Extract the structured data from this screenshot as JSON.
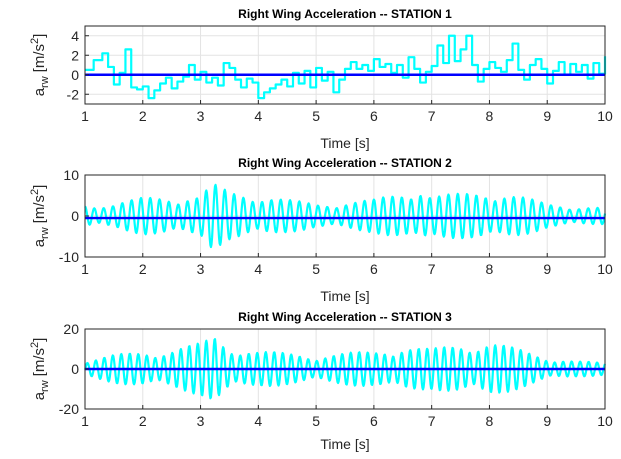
{
  "chart_data": [
    {
      "type": "line",
      "title": "Right Wing Acceleration -- STATION 1",
      "xlabel": "Time [s]",
      "ylabel": {
        "base": "a",
        "sub": "rw",
        "unit_open": "[m/s",
        "sup": "2",
        "unit_close": "]"
      },
      "xlim": [
        1,
        10
      ],
      "ylim": [
        -3,
        5
      ],
      "xticks": [
        1,
        2,
        3,
        4,
        5,
        6,
        7,
        8,
        9,
        10
      ],
      "yticks": [
        -2,
        0,
        2,
        4
      ],
      "grid": true,
      "series": [
        {
          "color": "#00ffff",
          "x": [
            1.0,
            1.15,
            1.3,
            1.4,
            1.5,
            1.6,
            1.7,
            1.8,
            1.9,
            2.0,
            2.1,
            2.2,
            2.3,
            2.4,
            2.5,
            2.6,
            2.7,
            2.8,
            2.9,
            3.0,
            3.1,
            3.2,
            3.3,
            3.4,
            3.5,
            3.6,
            3.7,
            3.8,
            3.9,
            4.0,
            4.1,
            4.2,
            4.3,
            4.4,
            4.5,
            4.6,
            4.7,
            4.8,
            4.9,
            5.0,
            5.1,
            5.2,
            5.3,
            5.4,
            5.5,
            5.6,
            5.7,
            5.8,
            5.9,
            6.0,
            6.1,
            6.2,
            6.3,
            6.4,
            6.5,
            6.6,
            6.7,
            6.8,
            6.9,
            7.0,
            7.1,
            7.2,
            7.3,
            7.4,
            7.5,
            7.6,
            7.7,
            7.8,
            7.9,
            8.0,
            8.1,
            8.2,
            8.3,
            8.4,
            8.5,
            8.6,
            8.7,
            8.8,
            8.9,
            9.0,
            9.1,
            9.2,
            9.3,
            9.4,
            9.5,
            9.6,
            9.7,
            9.8,
            9.9,
            10.0
          ],
          "y": [
            0.5,
            1.5,
            2.2,
            0.8,
            -1.0,
            0.2,
            2.6,
            -1.3,
            -1.5,
            -1.2,
            -2.4,
            -1.6,
            -0.9,
            -0.3,
            -1.4,
            -0.7,
            -0.2,
            1.0,
            -0.5,
            0.3,
            -0.8,
            -0.3,
            -1.1,
            1.2,
            0.7,
            -0.5,
            -1.3,
            -0.4,
            -0.8,
            -2.4,
            -1.8,
            -1.4,
            -1.0,
            -0.5,
            -1.2,
            0.2,
            -0.9,
            0.4,
            -1.3,
            0.7,
            -0.6,
            0.3,
            -1.8,
            -0.5,
            0.6,
            1.3,
            0.6,
            1.0,
            0.4,
            1.6,
            0.8,
            1.1,
            0.2,
            1.0,
            -0.3,
            1.8,
            0.6,
            -0.8,
            0.3,
            0.9,
            3.0,
            1.2,
            4.0,
            1.4,
            2.6,
            4.0,
            1.0,
            -0.7,
            0.6,
            1.3,
            0.7,
            0.3,
            1.5,
            3.2,
            0.5,
            -0.5,
            1.0,
            1.6,
            0.6,
            -0.9,
            0.4,
            1.3,
            0.0,
            1.1,
            0.3,
            1.0,
            -0.4,
            1.2,
            0.1,
            1.9
          ]
        },
        {
          "color": "#0000ff",
          "x": [
            1,
            10
          ],
          "y": [
            0.0,
            0.0
          ]
        }
      ]
    },
    {
      "type": "line",
      "title": "Right Wing Acceleration -- STATION 2",
      "xlabel": "Time [s]",
      "ylabel": {
        "base": "a",
        "sub": "rw",
        "unit_open": "[m/s",
        "sup": "2",
        "unit_close": "]"
      },
      "xlim": [
        1,
        10
      ],
      "ylim": [
        -10,
        10
      ],
      "xticks": [
        1,
        2,
        3,
        4,
        5,
        6,
        7,
        8,
        9,
        10
      ],
      "yticks": [
        -10,
        0,
        10
      ],
      "grid": true,
      "series": [
        {
          "color": "#00ffff",
          "envelope": {
            "t": [
              1,
              1.5,
              2,
              2.5,
              3,
              3.2,
              3.5,
              4,
              4.5,
              5,
              5.5,
              6,
              6.5,
              6.8,
              7,
              7.5,
              8,
              8.5,
              9,
              9.5,
              10
            ],
            "a": [
              3,
              3,
              4.5,
              5,
              5,
              8,
              6,
              5.5,
              4,
              3,
              3.5,
              4,
              6,
              7.5,
              5,
              5.5,
              6.5,
              5,
              3,
              2.5,
              2
            ]
          },
          "cycles_per_second": 6.2,
          "phase": 0.3
        },
        {
          "color": "#0000ff",
          "x": [
            1,
            10
          ],
          "y": [
            -0.5,
            -0.5
          ]
        }
      ]
    },
    {
      "type": "line",
      "title": "Right Wing Acceleration  -- STATION 3",
      "xlabel": "Time [s]",
      "ylabel": {
        "base": "a",
        "sub": "rw",
        "unit_open": "[m/s",
        "sup": "2",
        "unit_close": "]"
      },
      "xlim": [
        1,
        10
      ],
      "ylim": [
        -20,
        20
      ],
      "xticks": [
        1,
        2,
        3,
        4,
        5,
        6,
        7,
        8,
        9,
        10
      ],
      "yticks": [
        -20,
        0,
        20
      ],
      "grid": true,
      "series": [
        {
          "color": "#00ffff",
          "envelope": {
            "t": [
              1,
              1.5,
              2,
              2.5,
              3,
              3.25,
              3.5,
              4,
              4.5,
              5,
              5.5,
              6,
              6.5,
              7,
              7.5,
              8,
              8.5,
              9,
              9.5,
              10
            ],
            "a": [
              4,
              7,
              9,
              10,
              13,
              17,
              12,
              9,
              8,
              7,
              8,
              9,
              12,
              10,
              13,
              14,
              10,
              6,
              4,
              3
            ]
          },
          "cycles_per_second": 6.8,
          "phase": 1.1
        },
        {
          "color": "#0000ff",
          "x": [
            1,
            10
          ],
          "y": [
            0.0,
            0.0
          ]
        }
      ]
    }
  ]
}
